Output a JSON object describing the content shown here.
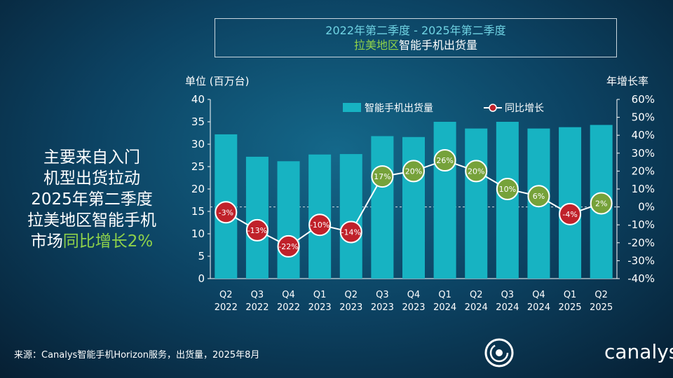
{
  "title": {
    "line1": "2022年第二季度 - 2025年第二季度",
    "line2_green": "拉美地区",
    "line2_rest": "智能手机出货量"
  },
  "headline": {
    "line1": "主要来自入门",
    "line2": "机型出货拉动",
    "line3": "2025年第二季度",
    "line4": "拉美地区智能手机",
    "line5_plain": "市场",
    "line5_highlight": "同比增长2%"
  },
  "footer": "来源：Canalys智能手机Horizon服务，出货量，2025年8月",
  "logo": {
    "text": "canalys"
  },
  "colors": {
    "bar": "#17b3c2",
    "yoy_negative": "#c0212a",
    "yoy_positive": "#76a23a",
    "line": "#ffffff"
  },
  "chart_data": {
    "type": "bar",
    "title": "",
    "ylabel": "单位 (百万台)",
    "y2label": "年增长率",
    "ylim": [
      0,
      40
    ],
    "y2lim": [
      -40,
      60
    ],
    "yticks": [
      "0",
      "5",
      "10",
      "15",
      "20",
      "25",
      "30",
      "35",
      "40"
    ],
    "y2ticks": [
      "-40%",
      "-30%",
      "-20%",
      "-10%",
      "0%",
      "10%",
      "20%",
      "30%",
      "40%",
      "50%",
      "60%"
    ],
    "legend_position": "top",
    "categories": [
      [
        "Q2",
        "2022"
      ],
      [
        "Q3",
        "2022"
      ],
      [
        "Q4",
        "2022"
      ],
      [
        "Q1",
        "2023"
      ],
      [
        "Q2",
        "2023"
      ],
      [
        "Q3",
        "2023"
      ],
      [
        "Q4",
        "2023"
      ],
      [
        "Q1",
        "2024"
      ],
      [
        "Q2",
        "2024"
      ],
      [
        "Q3",
        "2024"
      ],
      [
        "Q4",
        "2024"
      ],
      [
        "Q1",
        "2025"
      ],
      [
        "Q2",
        "2025"
      ]
    ],
    "series": [
      {
        "name": "智能手机出货量",
        "type": "bar",
        "axis": "left",
        "values": [
          32.2,
          27.2,
          26.2,
          27.7,
          27.8,
          31.8,
          31.6,
          35.0,
          33.5,
          35.0,
          33.5,
          33.8,
          34.3
        ]
      },
      {
        "name": "同比增长",
        "type": "line",
        "axis": "right",
        "values": [
          -3,
          -13,
          -22,
          -10,
          -14,
          17,
          20,
          26,
          20,
          10,
          6,
          -4,
          2
        ],
        "labels": [
          "-3%",
          "-13%",
          "-22%",
          "-10%",
          "-14%",
          "17%",
          "20%",
          "26%",
          "20%",
          "10%",
          "6%",
          "-4%",
          "2%"
        ]
      }
    ]
  }
}
